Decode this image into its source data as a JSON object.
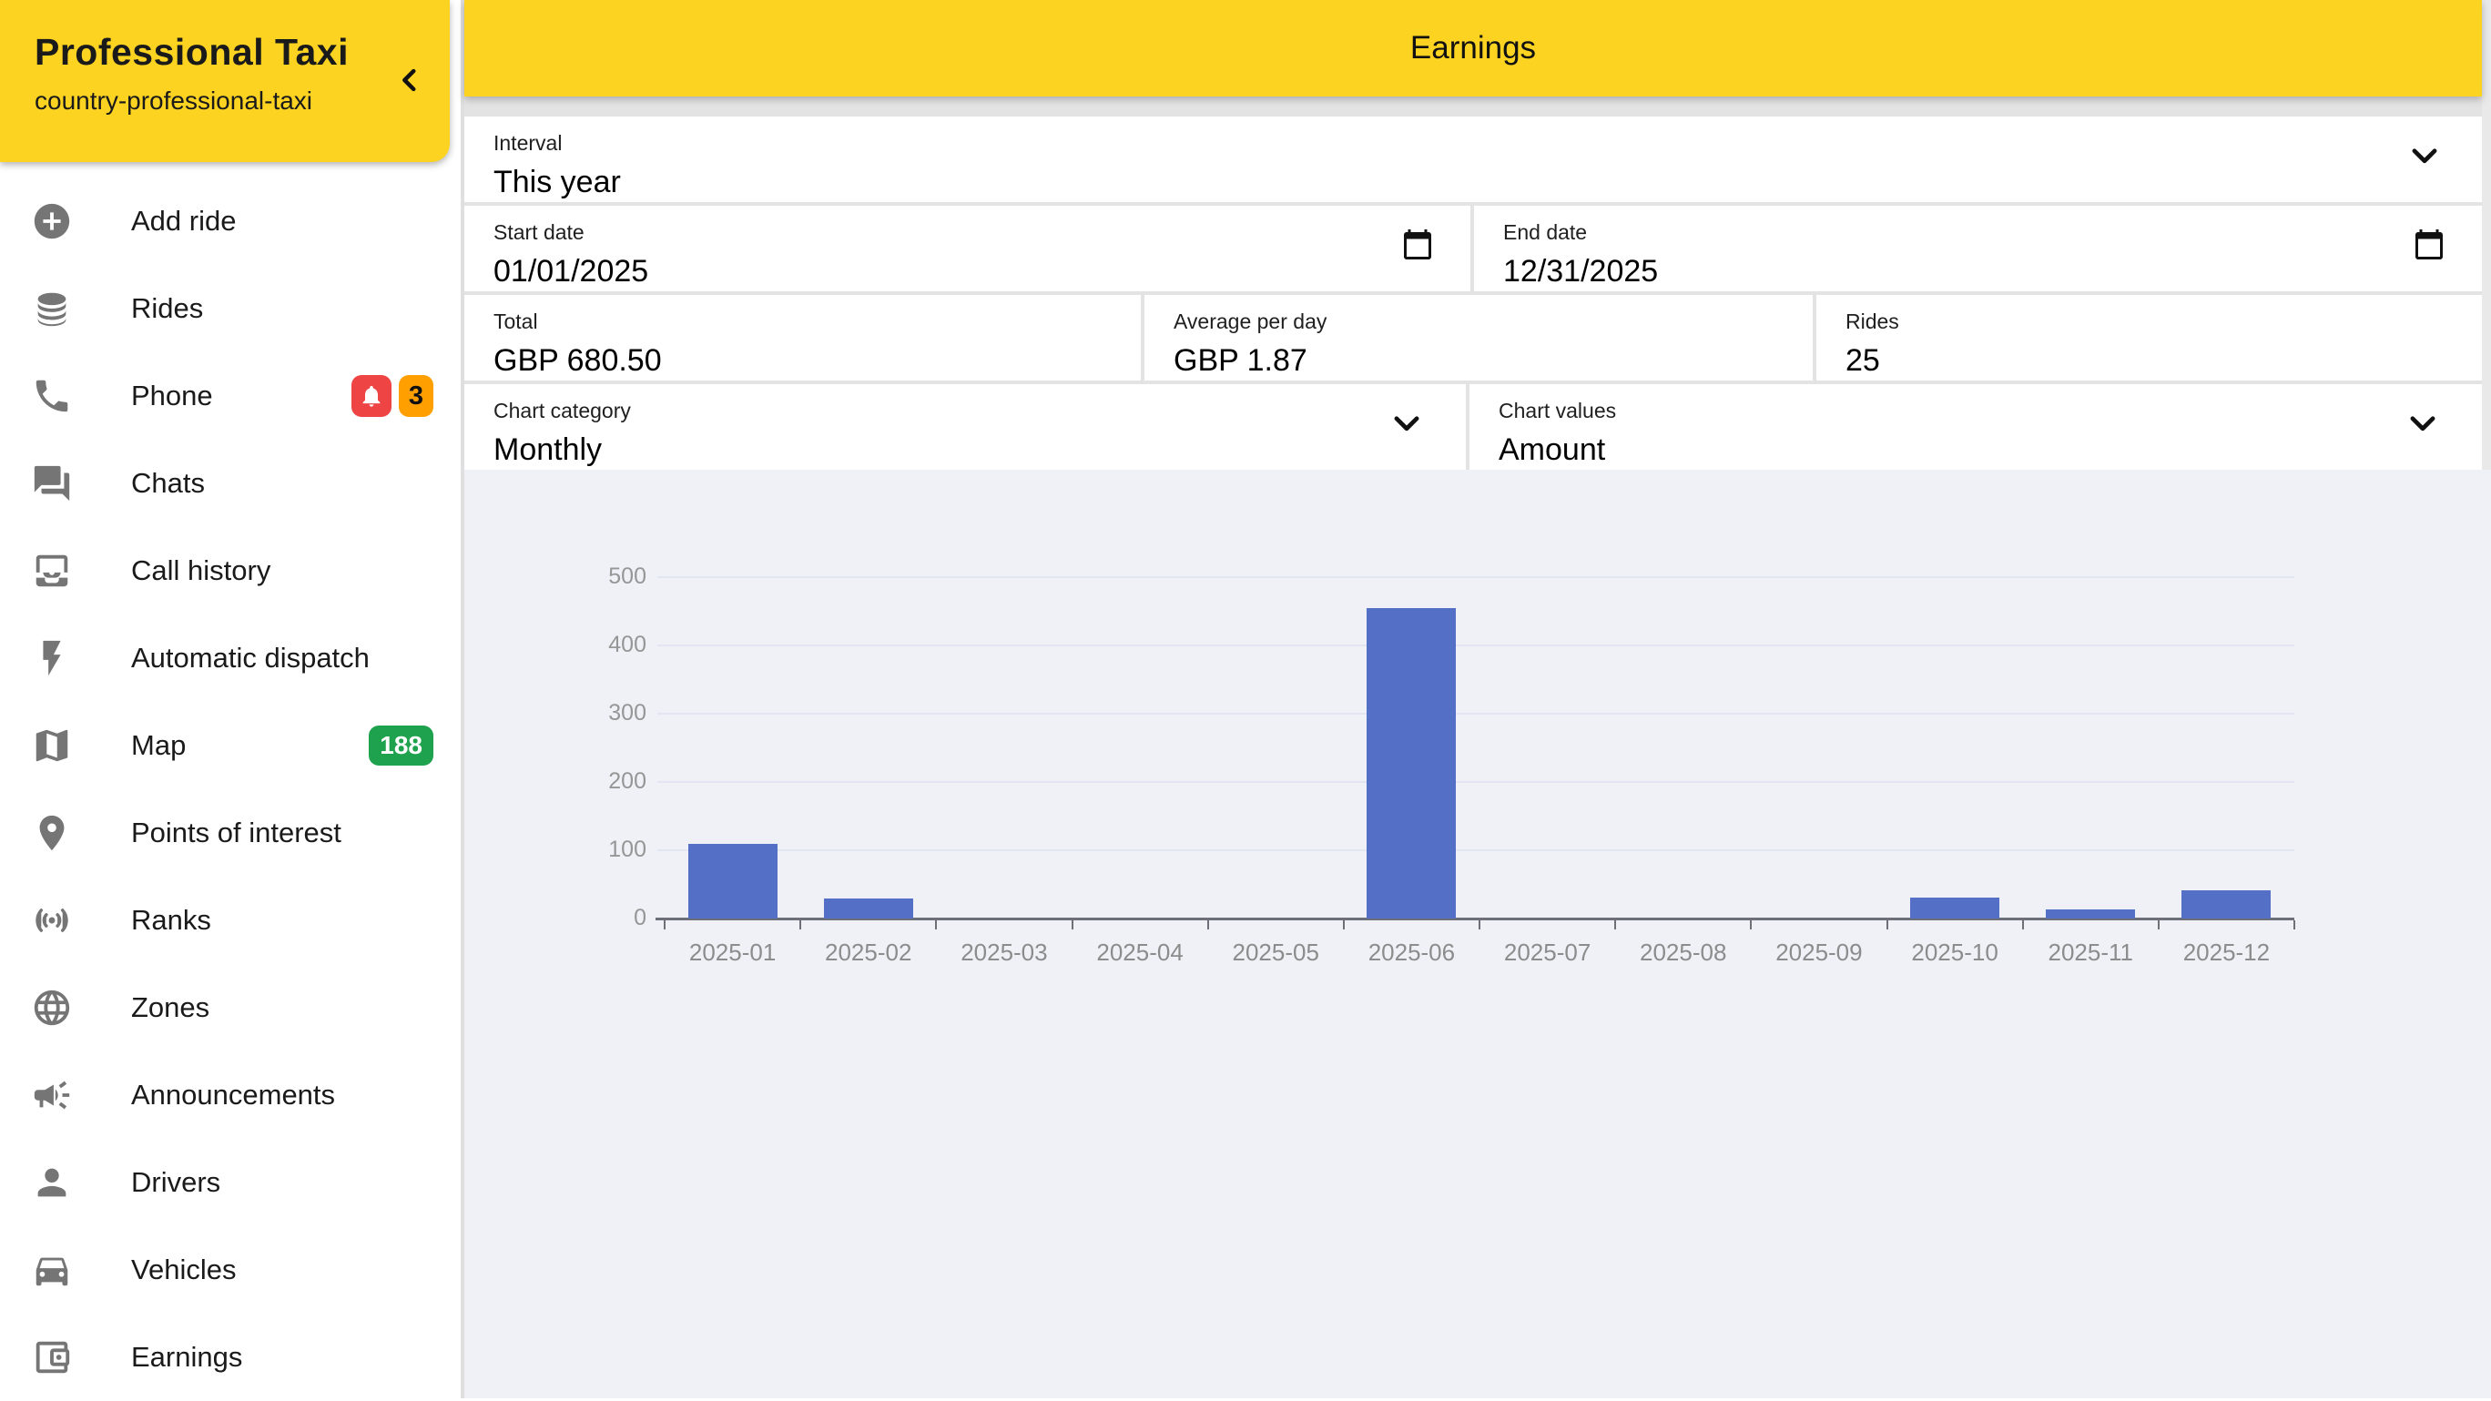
{
  "colors": {
    "brand_yellow": "#FCD321",
    "bar_blue": "#5470C6",
    "chart_background": "#EFF1F7",
    "badge_red": "#EF4444",
    "badge_orange": "#FFA000",
    "badge_green": "#1FA24D",
    "icon_gray": "#757575"
  },
  "sidebar": {
    "title": "Professional Taxi",
    "subtitle": "country-professional-taxi",
    "collapse_icon": "chevron-left",
    "items": [
      {
        "label": "Add ride",
        "icon": "plus-circle-icon"
      },
      {
        "label": "Rides",
        "icon": "stack-icon"
      },
      {
        "label": "Phone",
        "icon": "phone-icon",
        "badges": [
          {
            "type": "bell-icon",
            "color": "#EF4444"
          },
          {
            "type": "count",
            "text": "3",
            "color": "#FFA000"
          }
        ]
      },
      {
        "label": "Chats",
        "icon": "chat-bubbles-icon"
      },
      {
        "label": "Call history",
        "icon": "inbox-icon"
      },
      {
        "label": "Automatic dispatch",
        "icon": "lightning-icon"
      },
      {
        "label": "Map",
        "icon": "map-icon",
        "badges": [
          {
            "type": "count",
            "text": "188",
            "color": "#1FA24D"
          }
        ]
      },
      {
        "label": "Points of interest",
        "icon": "pin-icon"
      },
      {
        "label": "Ranks",
        "icon": "broadcast-icon"
      },
      {
        "label": "Zones",
        "icon": "globe-icon"
      },
      {
        "label": "Announcements",
        "icon": "megaphone-icon"
      },
      {
        "label": "Drivers",
        "icon": "person-icon"
      },
      {
        "label": "Vehicles",
        "icon": "car-icon"
      },
      {
        "label": "Earnings",
        "icon": "wallet-icon"
      }
    ]
  },
  "header": {
    "title": "Earnings"
  },
  "filters": {
    "interval": {
      "label": "Interval",
      "value": "This year"
    },
    "start_date": {
      "label": "Start date",
      "value": "01/01/2025"
    },
    "end_date": {
      "label": "End date",
      "value": "12/31/2025"
    },
    "total": {
      "label": "Total",
      "value": "GBP 680.50"
    },
    "average": {
      "label": "Average per day",
      "value": "GBP 1.87"
    },
    "rides": {
      "label": "Rides",
      "value": "25"
    },
    "chart_category": {
      "label": "Chart category",
      "value": "Monthly"
    },
    "chart_values": {
      "label": "Chart values",
      "value": "Amount"
    }
  },
  "chart_data": {
    "type": "bar",
    "title": "",
    "xlabel": "",
    "ylabel": "",
    "categories": [
      "2025-01",
      "2025-02",
      "2025-03",
      "2025-04",
      "2025-05",
      "2025-06",
      "2025-07",
      "2025-08",
      "2025-09",
      "2025-10",
      "2025-11",
      "2025-12"
    ],
    "values": [
      110,
      30,
      0,
      0,
      0,
      455,
      0,
      0,
      0,
      30.5,
      13,
      42
    ],
    "ylim": [
      0,
      500
    ],
    "yticks": [
      0,
      100,
      200,
      300,
      400,
      500
    ],
    "grid": true,
    "legend": "none",
    "bar_color": "#5470C6"
  }
}
